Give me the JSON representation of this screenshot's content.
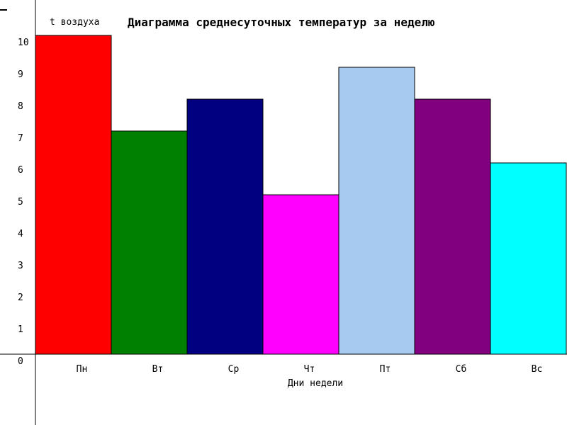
{
  "chart_data": {
    "type": "bar",
    "title": "Диаграмма среднесуточных температур за неделю",
    "xlabel": "Дни недели",
    "ylabel": "t воздуха",
    "categories": [
      "Пн",
      "Вт",
      "Ср",
      "Чт",
      "Пт",
      "Сб",
      "Вс"
    ],
    "values": [
      10,
      7,
      8,
      5,
      9,
      8,
      6
    ],
    "colors": [
      "#ff0000",
      "#008000",
      "#000080",
      "#ff00ff",
      "#a6caf0",
      "#800080",
      "#00ffff"
    ],
    "ylim": [
      0,
      10
    ],
    "yticks": [
      "0",
      "1",
      "2",
      "3",
      "4",
      "5",
      "6",
      "7",
      "8",
      "9",
      "10"
    ],
    "grid": false,
    "legend": false
  }
}
